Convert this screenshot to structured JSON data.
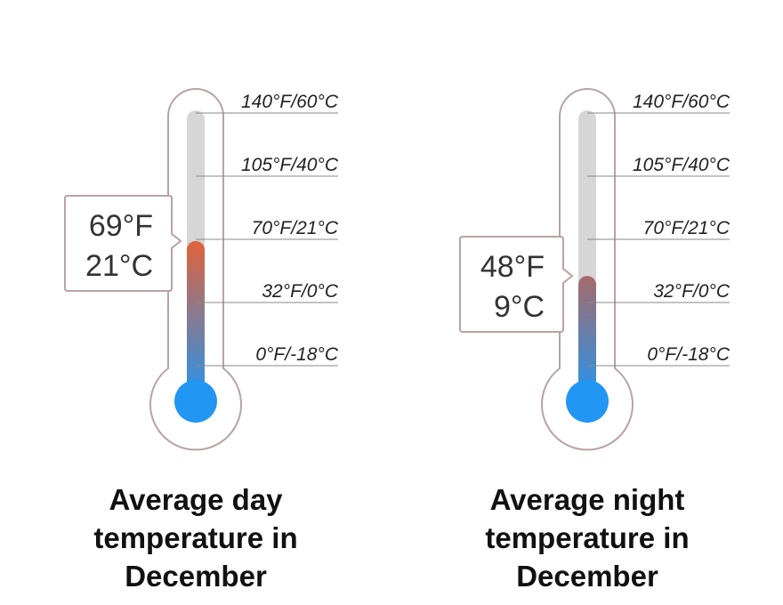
{
  "chart_data": [
    {
      "type": "thermometer",
      "title_lines": [
        "Average day",
        "temperature in",
        "December"
      ],
      "value_f": 69,
      "value_c": 21,
      "readout_f": "69°F",
      "readout_c": "21°C",
      "scale": [
        {
          "f": 140,
          "label": "140°F/60°C"
        },
        {
          "f": 105,
          "label": "105°F/40°C"
        },
        {
          "f": 70,
          "label": "70°F/21°C"
        },
        {
          "f": 32,
          "label": "32°F/0°C"
        },
        {
          "f": 0,
          "label": "0°F/-18°C"
        }
      ],
      "fill_colors": {
        "top": "#e0623a",
        "bottom": "#2196f3"
      }
    },
    {
      "type": "thermometer",
      "title_lines": [
        "Average night",
        "temperature in",
        "December"
      ],
      "value_f": 48,
      "value_c": 9,
      "readout_f": "48°F",
      "readout_c": "9°C",
      "scale": [
        {
          "f": 140,
          "label": "140°F/60°C"
        },
        {
          "f": 105,
          "label": "105°F/40°C"
        },
        {
          "f": 70,
          "label": "70°F/21°C"
        },
        {
          "f": 32,
          "label": "32°F/0°C"
        },
        {
          "f": 0,
          "label": "0°F/-18°C"
        }
      ],
      "fill_colors": {
        "top": "#a56a6a",
        "bottom": "#2196f3"
      }
    }
  ],
  "colors": {
    "outline": "#b9a3a3",
    "tube_empty": "#d6d6d6",
    "bulb": "#2196f3",
    "tick_line": "#8a8a8a",
    "callout_border": "#b9a3a3"
  }
}
